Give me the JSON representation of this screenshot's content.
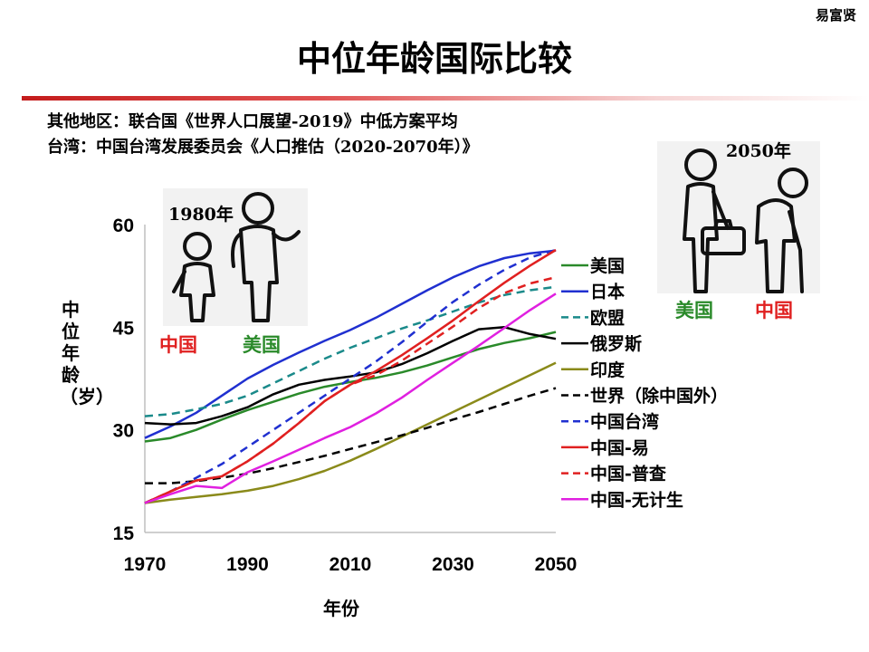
{
  "author": "易富贤",
  "title": "中位年龄国际比较",
  "sources": [
    "其他地区：联合国《世界人口展望-2019》中低方案平均",
    "台湾：中国台湾发展委员会《人口推估（2020-2070年）》"
  ],
  "illustrations": {
    "left": {
      "year": "1980年",
      "label_a": "中国",
      "label_b": "美国"
    },
    "right": {
      "year": "2050年",
      "label_a": "美国",
      "label_b": "中国"
    }
  },
  "chart_data": {
    "type": "line",
    "ylabel": "中位年龄（岁）",
    "xlabel": "年份",
    "xlim": [
      1970,
      2050
    ],
    "ylim": [
      15,
      60
    ],
    "xticks": [
      1970,
      1990,
      2010,
      2030,
      2050
    ],
    "yticks": [
      15,
      30,
      45,
      60
    ],
    "x": [
      1970,
      1975,
      1980,
      1985,
      1990,
      1995,
      2000,
      2005,
      2010,
      2015,
      2020,
      2025,
      2030,
      2035,
      2040,
      2045,
      2050
    ],
    "series": [
      {
        "name": "美国",
        "color": "#2a8a2a",
        "dash": "solid",
        "values": [
          28.3,
          28.8,
          30.0,
          31.5,
          32.9,
          34.1,
          35.3,
          36.3,
          37.0,
          37.6,
          38.4,
          39.4,
          40.6,
          41.8,
          42.7,
          43.4,
          44.3
        ]
      },
      {
        "name": "日本",
        "color": "#2030d0",
        "dash": "solid",
        "values": [
          28.8,
          30.5,
          32.5,
          35.0,
          37.5,
          39.5,
          41.3,
          43.0,
          44.6,
          46.4,
          48.4,
          50.4,
          52.3,
          53.9,
          55.1,
          55.8,
          56.2
        ]
      },
      {
        "name": "欧盟",
        "color": "#1a8a8a",
        "dash": "dash",
        "values": [
          32.0,
          32.3,
          33.0,
          33.8,
          35.0,
          36.8,
          38.6,
          40.4,
          42.0,
          43.4,
          44.8,
          46.0,
          47.3,
          48.6,
          49.7,
          50.4,
          50.9
        ]
      },
      {
        "name": "俄罗斯",
        "color": "#000000",
        "dash": "solid",
        "values": [
          31.0,
          30.8,
          31.0,
          32.0,
          33.3,
          35.2,
          36.6,
          37.3,
          37.8,
          38.4,
          39.6,
          41.2,
          43.0,
          44.7,
          45.0,
          44.0,
          43.3
        ]
      },
      {
        "name": "印度",
        "color": "#8a8a1a",
        "dash": "solid",
        "values": [
          19.3,
          19.8,
          20.2,
          20.6,
          21.1,
          21.8,
          22.8,
          24.0,
          25.5,
          27.2,
          29.0,
          30.8,
          32.6,
          34.4,
          36.2,
          38.0,
          39.8
        ]
      },
      {
        "name": "世界（除中国外）",
        "color": "#000000",
        "dash": "dash",
        "values": [
          22.2,
          22.2,
          22.5,
          23.0,
          23.6,
          24.4,
          25.3,
          26.2,
          27.2,
          28.2,
          29.2,
          30.3,
          31.5,
          32.6,
          33.8,
          35.0,
          36.1
        ]
      },
      {
        "name": "中国台湾",
        "color": "#2030d0",
        "dash": "dash",
        "values": [
          19.3,
          21.0,
          23.0,
          25.0,
          27.5,
          30.0,
          32.5,
          35.0,
          37.5,
          40.0,
          42.8,
          45.8,
          48.7,
          51.2,
          53.4,
          55.2,
          56.3
        ]
      },
      {
        "name": "中国-易",
        "color": "#e02020",
        "dash": "solid",
        "values": [
          19.3,
          21.0,
          22.6,
          23.2,
          25.4,
          28.0,
          31.0,
          34.2,
          36.6,
          38.6,
          40.9,
          43.4,
          46.0,
          48.8,
          51.5,
          54.0,
          56.3
        ]
      },
      {
        "name": "中国-普查",
        "color": "#e02020",
        "dash": "dash",
        "values": [
          19.3,
          21.0,
          22.6,
          23.2,
          25.4,
          28.0,
          31.0,
          34.2,
          36.6,
          38.0,
          40.1,
          42.6,
          45.1,
          47.8,
          50.0,
          51.4,
          52.3
        ]
      },
      {
        "name": "中国-无计生",
        "color": "#e020e0",
        "dash": "solid",
        "values": [
          19.3,
          20.6,
          21.8,
          21.5,
          23.8,
          25.4,
          27.1,
          28.8,
          30.4,
          32.4,
          34.7,
          37.3,
          39.8,
          42.3,
          44.9,
          47.5,
          49.9
        ]
      }
    ]
  }
}
